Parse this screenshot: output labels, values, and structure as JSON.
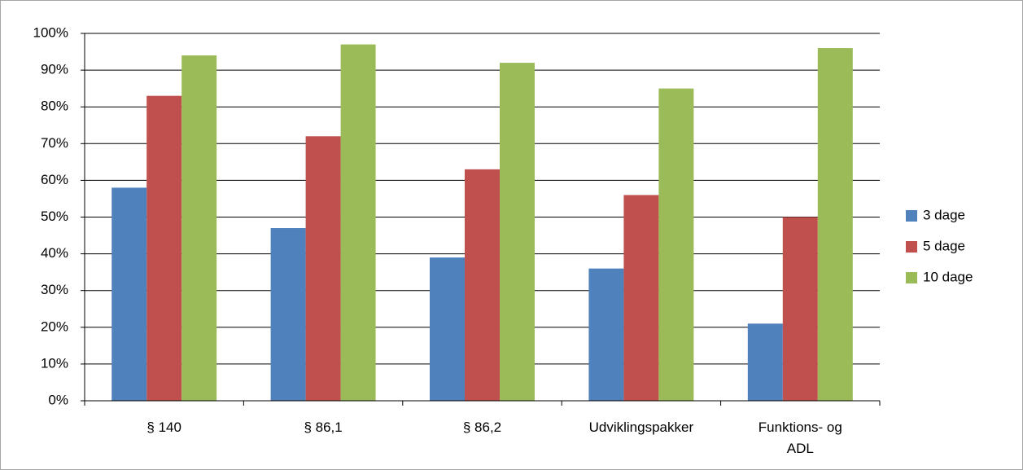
{
  "chart_data": {
    "type": "bar",
    "categories": [
      "§ 140",
      "§ 86,1",
      "§ 86,2",
      "Udviklingspakker",
      "Funktions- og\nADL"
    ],
    "series": [
      {
        "name": "3 dage",
        "color": "#4f81bd",
        "values": [
          58,
          47,
          39,
          36,
          21
        ]
      },
      {
        "name": "5 dage",
        "color": "#c0504d",
        "values": [
          83,
          72,
          63,
          56,
          50
        ]
      },
      {
        "name": "10 dage",
        "color": "#9bbb59",
        "values": [
          94,
          97,
          92,
          85,
          96
        ]
      }
    ],
    "ylim": [
      0,
      100
    ],
    "yticks": [
      {
        "value": 0,
        "label": "0%"
      },
      {
        "value": 10,
        "label": "10%"
      },
      {
        "value": 20,
        "label": "20%"
      },
      {
        "value": 30,
        "label": "30%"
      },
      {
        "value": 40,
        "label": "40%"
      },
      {
        "value": 50,
        "label": "50%"
      },
      {
        "value": 60,
        "label": "60%"
      },
      {
        "value": 70,
        "label": "70%"
      },
      {
        "value": 80,
        "label": "80%"
      },
      {
        "value": 90,
        "label": "90%"
      },
      {
        "value": 100,
        "label": "100%"
      }
    ],
    "grid": true,
    "legend": "right"
  }
}
